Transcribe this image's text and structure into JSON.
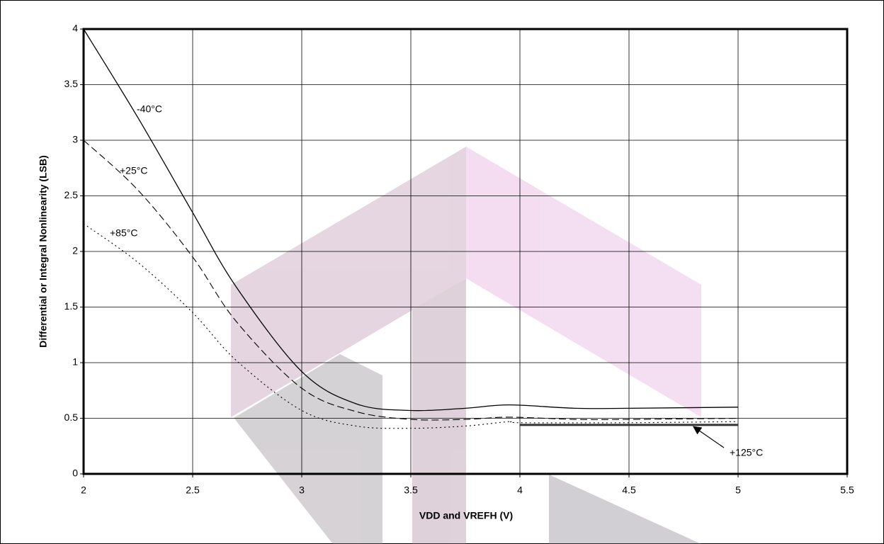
{
  "chart_data": {
    "type": "line",
    "xlabel": "VDD and VREFH (V)",
    "ylabel": "Differential or Integral Nonlinearity (LSB)",
    "xlim": [
      2,
      5.5
    ],
    "xticks": [
      2,
      2.5,
      3,
      3.5,
      4,
      4.5,
      5,
      5.5
    ],
    "ylim": [
      0,
      4
    ],
    "yticks": [
      0,
      0.5,
      1,
      1.5,
      2,
      2.5,
      3,
      3.5,
      4
    ],
    "grid": true,
    "series": [
      {
        "name": "-40°C",
        "color": "#000000",
        "dash": "solid",
        "width": 1.3,
        "x": [
          2,
          2.25,
          2.5,
          2.7,
          3,
          3.25,
          3.5,
          3.75,
          3.95,
          4.25,
          4.5,
          5
        ],
        "values": [
          4.0,
          3.2,
          2.35,
          1.68,
          0.92,
          0.63,
          0.57,
          0.59,
          0.62,
          0.59,
          0.59,
          0.6
        ]
      },
      {
        "name": "+25°C",
        "color": "#000000",
        "dash": "dashed",
        "width": 1.1,
        "x": [
          2,
          2.25,
          2.5,
          2.7,
          3,
          3.25,
          3.5,
          3.75,
          3.95,
          4.25,
          4.5,
          5
        ],
        "values": [
          3.0,
          2.55,
          1.95,
          1.37,
          0.77,
          0.56,
          0.49,
          0.49,
          0.51,
          0.49,
          0.49,
          0.5
        ]
      },
      {
        "name": "+85°C",
        "color": "#000000",
        "dash": "dotted",
        "width": 1.1,
        "x": [
          2,
          2.25,
          2.5,
          2.7,
          3,
          3.25,
          3.5,
          3.75,
          3.95,
          4,
          4.5,
          5
        ],
        "values": [
          2.25,
          1.9,
          1.45,
          1.02,
          0.57,
          0.43,
          0.41,
          0.43,
          0.47,
          0.46,
          0.46,
          0.47
        ]
      },
      {
        "name": "+125°C",
        "color": "#333333",
        "dash": "solid",
        "width": 3,
        "x": [
          4,
          5
        ],
        "values": [
          0.44,
          0.44
        ]
      }
    ]
  }
}
